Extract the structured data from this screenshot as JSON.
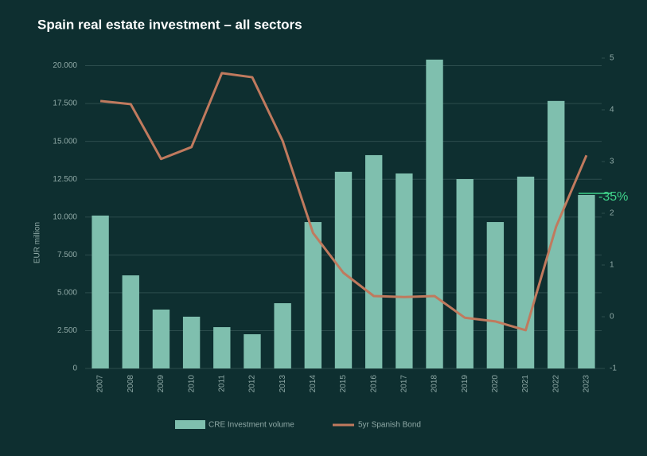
{
  "chart_data": {
    "type": "bar",
    "title": "Spain real estate investment – all sectors",
    "y_label": "EUR million",
    "annotation": "-35%",
    "categories": [
      "2007",
      "2008",
      "2009",
      "2010",
      "2011",
      "2012",
      "2013",
      "2014",
      "2015",
      "2016",
      "2017",
      "2018",
      "2019",
      "2020",
      "2021",
      "2022",
      "2023"
    ],
    "series": [
      {
        "name": "CRE Investment volume",
        "type": "bar",
        "color": "#7fbfae",
        "values": [
          10100,
          6150,
          3890,
          3420,
          2730,
          2260,
          4310,
          9670,
          12990,
          14090,
          12880,
          20400,
          12510,
          9670,
          12670,
          17670,
          11460
        ]
      },
      {
        "name": "5yr Spanish Bond",
        "type": "line",
        "axis": "y2",
        "color": "#c07a5e",
        "values": [
          4.17,
          4.11,
          3.05,
          3.28,
          4.71,
          4.63,
          3.4,
          1.62,
          0.85,
          0.4,
          0.38,
          0.4,
          -0.02,
          -0.09,
          -0.26,
          1.74,
          3.12
        ]
      }
    ],
    "ylim": [
      0,
      20500
    ],
    "yticks": [
      0,
      {
        "value": 2500,
        "label": "2.500"
      },
      {
        "value": 5000,
        "label": "5.000"
      },
      {
        "value": 7500,
        "label": "7.500"
      },
      {
        "value": 10000,
        "label": "10.000"
      },
      {
        "value": 12500,
        "label": "12.500"
      },
      {
        "value": 15000,
        "label": "15.000"
      },
      {
        "value": 17500,
        "label": "17.500"
      },
      {
        "value": 20000,
        "label": "20.000"
      }
    ],
    "y2lim": [
      -1,
      5
    ],
    "y2ticks": [
      -1,
      0,
      1,
      2,
      3,
      4,
      5
    ],
    "grid": true,
    "annotation_color": "#3fd38a"
  }
}
